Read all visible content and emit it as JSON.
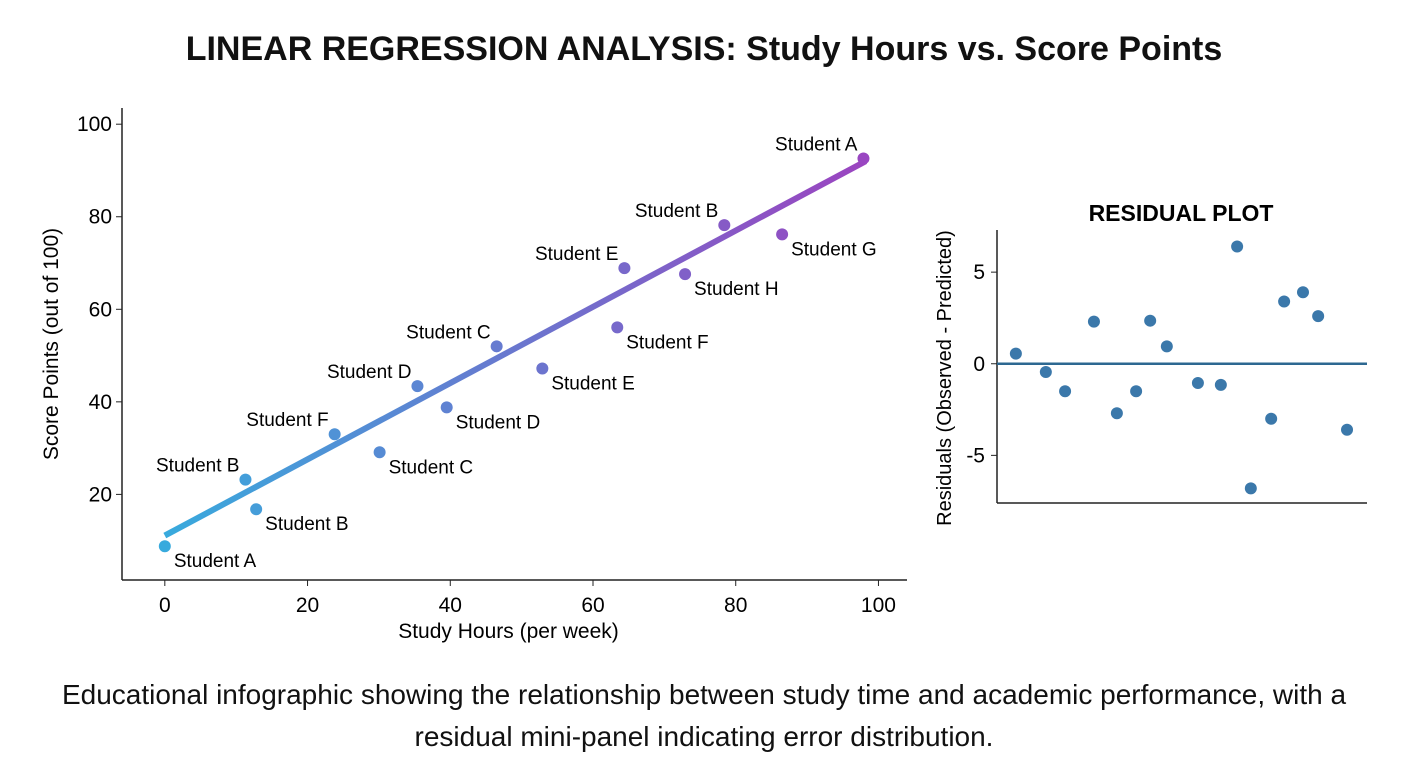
{
  "title": "LINEAR REGRESSION ANALYSIS: Study Hours vs. Score Points",
  "caption": "Educational infographic showing the relationship between study time and academic performance, with a residual mini-panel indicating error distribution.",
  "colors": {
    "line_start": "#38aadd",
    "line_end": "#9b44c0",
    "residual_points": "#3b78aa",
    "zero_line": "#2d6891"
  },
  "chart_data": [
    {
      "type": "scatter",
      "title": "",
      "xlabel": "Study Hours (per week)",
      "ylabel": "Score Points (out of 100)",
      "xlim": [
        -6,
        104
      ],
      "ylim": [
        1.5,
        103.5
      ],
      "xticks": [
        0,
        20,
        40,
        60,
        80,
        100
      ],
      "yticks": [
        20,
        40,
        60,
        80,
        100
      ],
      "grid": false,
      "regression_line": {
        "x": [
          0,
          98.2
        ],
        "y": [
          11.1,
          92.0
        ]
      },
      "points": [
        {
          "label": "Student A",
          "x": 0,
          "y": 8.8,
          "label_position": "lower-right"
        },
        {
          "label": "Student B",
          "x": 11.3,
          "y": 23.2,
          "label_position": "upper-left"
        },
        {
          "label": "Student B",
          "x": 12.8,
          "y": 16.8,
          "label_position": "lower-right"
        },
        {
          "label": "Student F",
          "x": 23.8,
          "y": 33.0,
          "label_position": "upper-left"
        },
        {
          "label": "Student C",
          "x": 30.1,
          "y": 29.1,
          "label_position": "lower-right"
        },
        {
          "label": "Student D",
          "x": 35.4,
          "y": 43.4,
          "label_position": "upper-left"
        },
        {
          "label": "Student D",
          "x": 39.5,
          "y": 38.8,
          "label_position": "lower-right"
        },
        {
          "label": "Student C",
          "x": 46.5,
          "y": 52.0,
          "label_position": "upper-left"
        },
        {
          "label": "Student E",
          "x": 52.9,
          "y": 47.2,
          "label_position": "lower-right"
        },
        {
          "label": "Student F",
          "x": 63.4,
          "y": 56.1,
          "label_position": "lower-right"
        },
        {
          "label": "Student E",
          "x": 64.4,
          "y": 68.9,
          "label_position": "upper-left"
        },
        {
          "label": "Student H",
          "x": 72.9,
          "y": 67.6,
          "label_position": "lower-right"
        },
        {
          "label": "Student B",
          "x": 78.4,
          "y": 78.2,
          "label_position": "upper-left"
        },
        {
          "label": "Student G",
          "x": 86.5,
          "y": 76.2,
          "label_position": "lower-right"
        },
        {
          "label": "Student A",
          "x": 97.9,
          "y": 92.6,
          "label_position": "upper-left"
        }
      ]
    },
    {
      "type": "scatter",
      "title": "RESIDUAL PLOT",
      "xlabel": "",
      "ylabel": "Residuals (Observed - Predicted)",
      "xlim": [
        0,
        100
      ],
      "ylim": [
        -7.6,
        7.3
      ],
      "yticks": [
        5,
        0,
        -5
      ],
      "ytick_labels": [
        "5",
        "0",
        "-5"
      ],
      "grid": false,
      "zero_line": 0,
      "points": [
        {
          "x": 5.1,
          "y": 0.55
        },
        {
          "x": 13.2,
          "y": -0.45
        },
        {
          "x": 18.4,
          "y": -1.5
        },
        {
          "x": 26.2,
          "y": 2.3
        },
        {
          "x": 32.4,
          "y": -2.7
        },
        {
          "x": 37.6,
          "y": -1.5
        },
        {
          "x": 41.4,
          "y": 2.35
        },
        {
          "x": 45.9,
          "y": 0.95
        },
        {
          "x": 54.3,
          "y": -1.05
        },
        {
          "x": 60.5,
          "y": -1.15
        },
        {
          "x": 64.9,
          "y": 6.4
        },
        {
          "x": 68.6,
          "y": -6.8
        },
        {
          "x": 74.1,
          "y": -3.0
        },
        {
          "x": 77.6,
          "y": 3.4
        },
        {
          "x": 82.7,
          "y": 3.9
        },
        {
          "x": 86.8,
          "y": 2.6
        },
        {
          "x": 94.6,
          "y": -3.6
        }
      ]
    }
  ]
}
